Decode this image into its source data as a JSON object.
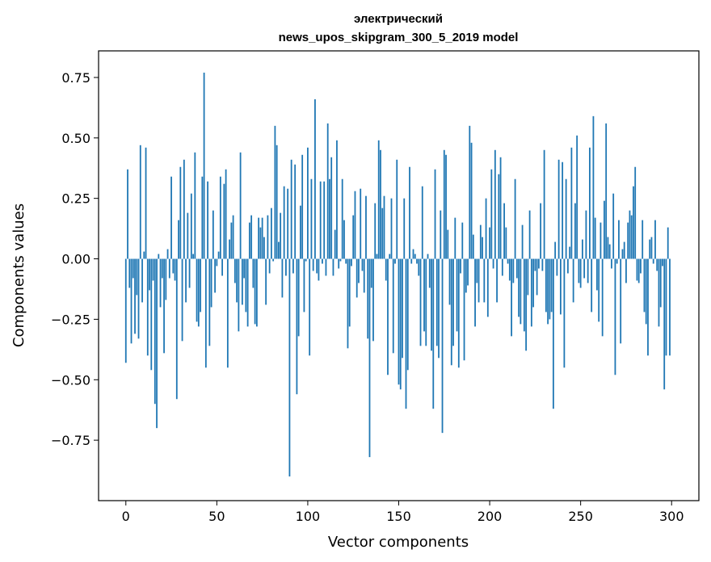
{
  "chart_data": {
    "type": "bar",
    "title_line1": "электрический",
    "title_line2": "news_upos_skipgram_300_5_2019 model",
    "xlabel": "Vector components",
    "ylabel": "Components values",
    "xlim": [
      -15,
      315
    ],
    "ylim": [
      -1.0,
      0.86
    ],
    "xticks": [
      0,
      50,
      100,
      150,
      200,
      250,
      300
    ],
    "xtick_labels": [
      "0",
      "50",
      "100",
      "150",
      "200",
      "250",
      "300"
    ],
    "yticks": [
      -0.75,
      -0.5,
      -0.25,
      0.0,
      0.25,
      0.5,
      0.75
    ],
    "ytick_labels": [
      "−0.75",
      "−0.50",
      "−0.25",
      "0.00",
      "0.25",
      "0.50",
      "0.75"
    ],
    "bar_color": "#1f77b4",
    "grid": false,
    "values": [
      -0.43,
      0.37,
      -0.12,
      -0.35,
      -0.08,
      -0.31,
      -0.15,
      -0.33,
      0.47,
      -0.18,
      0.03,
      0.46,
      -0.4,
      -0.13,
      -0.46,
      -0.09,
      -0.6,
      -0.7,
      0.02,
      -0.2,
      -0.08,
      -0.39,
      -0.17,
      0.04,
      -0.08,
      0.34,
      -0.06,
      -0.09,
      -0.58,
      0.16,
      0.38,
      -0.34,
      0.41,
      -0.18,
      0.19,
      -0.12,
      0.27,
      0.02,
      0.44,
      -0.26,
      -0.28,
      -0.22,
      0.34,
      0.77,
      -0.45,
      0.32,
      -0.36,
      -0.2,
      0.2,
      -0.14,
      -0.03,
      0.03,
      0.34,
      -0.07,
      0.31,
      0.37,
      -0.45,
      0.08,
      0.15,
      0.18,
      -0.1,
      -0.18,
      -0.3,
      0.44,
      -0.19,
      -0.08,
      -0.22,
      -0.28,
      0.15,
      0.18,
      -0.12,
      -0.27,
      -0.28,
      0.17,
      0.13,
      0.17,
      0.09,
      -0.19,
      0.18,
      -0.06,
      0.21,
      -0.01,
      0.55,
      0.47,
      0.07,
      0.19,
      -0.16,
      0.3,
      -0.07,
      0.29,
      -0.9,
      0.41,
      -0.06,
      0.39,
      -0.56,
      -0.32,
      0.22,
      0.43,
      -0.22,
      -0.01,
      0.46,
      -0.4,
      0.33,
      -0.05,
      0.66,
      -0.06,
      -0.09,
      0.32,
      -0.02,
      0.32,
      -0.07,
      0.56,
      0.33,
      0.42,
      -0.07,
      0.12,
      0.49,
      -0.04,
      -0.01,
      0.33,
      0.16,
      -0.02,
      -0.37,
      -0.28,
      -0.03,
      0.18,
      0.28,
      -0.16,
      -0.1,
      0.29,
      -0.05,
      -0.14,
      0.26,
      -0.33,
      -0.82,
      -0.12,
      -0.34,
      0.23,
      0.02,
      0.49,
      0.45,
      0.21,
      0.26,
      -0.09,
      -0.48,
      0.02,
      0.25,
      -0.39,
      -0.02,
      0.41,
      -0.52,
      -0.54,
      -0.41,
      0.25,
      -0.62,
      -0.46,
      0.38,
      -0.02,
      0.04,
      0.02,
      -0.02,
      -0.07,
      -0.36,
      0.3,
      -0.3,
      -0.36,
      0.02,
      -0.12,
      -0.38,
      -0.62,
      0.37,
      -0.36,
      -0.41,
      0.2,
      -0.72,
      0.45,
      0.43,
      0.12,
      -0.19,
      -0.44,
      -0.36,
      0.17,
      -0.3,
      -0.45,
      -0.06,
      0.15,
      -0.42,
      -0.14,
      -0.11,
      0.55,
      0.48,
      0.1,
      -0.28,
      -0.1,
      -0.18,
      0.14,
      0.09,
      -0.18,
      0.25,
      -0.24,
      0.13,
      0.37,
      -0.04,
      0.45,
      -0.18,
      0.35,
      0.42,
      -0.07,
      0.23,
      0.13,
      -0.02,
      -0.09,
      -0.32,
      -0.1,
      0.33,
      -0.08,
      -0.24,
      -0.27,
      0.14,
      -0.3,
      -0.38,
      -0.15,
      0.2,
      -0.28,
      -0.2,
      -0.05,
      -0.15,
      -0.04,
      0.23,
      -0.05,
      0.45,
      -0.22,
      -0.27,
      -0.25,
      -0.22,
      -0.62,
      0.07,
      -0.07,
      0.41,
      -0.23,
      0.4,
      -0.45,
      0.33,
      -0.06,
      0.05,
      0.46,
      -0.18,
      0.23,
      0.51,
      -0.1,
      -0.12,
      0.08,
      -0.08,
      0.2,
      -0.1,
      0.46,
      -0.22,
      0.59,
      0.17,
      -0.13,
      -0.26,
      0.15,
      -0.32,
      0.24,
      0.56,
      0.09,
      0.06,
      -0.04,
      0.27,
      -0.48,
      -0.02,
      0.16,
      -0.35,
      0.04,
      0.07,
      -0.1,
      0.15,
      0.2,
      0.18,
      0.3,
      0.38,
      -0.09,
      -0.1,
      -0.06,
      0.16,
      -0.22,
      -0.27,
      -0.4,
      0.08,
      0.09,
      -0.02,
      0.16,
      -0.05,
      -0.28,
      -0.2,
      -0.03,
      -0.54,
      -0.4,
      0.13,
      -0.4
    ]
  }
}
